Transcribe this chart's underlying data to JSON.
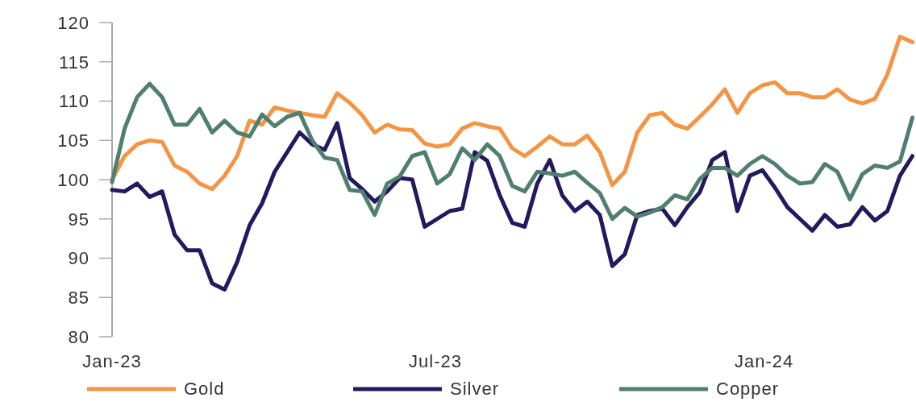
{
  "chart_data": {
    "type": "line",
    "xlim": [
      "2023-01-01",
      "2024-03-26"
    ],
    "xticks": [
      {
        "value": "2023-01-01",
        "label": "Jan-23"
      },
      {
        "value": "2023-07-01",
        "label": "Jul-23"
      },
      {
        "value": "2024-01-01",
        "label": "Jan-24"
      }
    ],
    "ylim": [
      80,
      120
    ],
    "yticks": [
      80,
      85,
      90,
      95,
      100,
      105,
      110,
      115,
      120
    ],
    "grid": false,
    "legend": "bottom",
    "marker": "none",
    "line_style": "solid",
    "x": [
      "2023-01-01",
      "2023-01-08",
      "2023-01-15",
      "2023-01-22",
      "2023-01-29",
      "2023-02-05",
      "2023-02-12",
      "2023-02-19",
      "2023-02-26",
      "2023-03-05",
      "2023-03-12",
      "2023-03-19",
      "2023-03-26",
      "2023-04-02",
      "2023-04-09",
      "2023-04-16",
      "2023-04-23",
      "2023-04-30",
      "2023-05-07",
      "2023-05-14",
      "2023-05-21",
      "2023-05-28",
      "2023-06-04",
      "2023-06-11",
      "2023-06-18",
      "2023-06-25",
      "2023-07-02",
      "2023-07-09",
      "2023-07-16",
      "2023-07-23",
      "2023-07-30",
      "2023-08-06",
      "2023-08-13",
      "2023-08-20",
      "2023-08-27",
      "2023-09-03",
      "2023-09-10",
      "2023-09-17",
      "2023-09-24",
      "2023-10-01",
      "2023-10-08",
      "2023-10-15",
      "2023-10-22",
      "2023-10-29",
      "2023-11-05",
      "2023-11-12",
      "2023-11-19",
      "2023-11-26",
      "2023-12-03",
      "2023-12-10",
      "2023-12-17",
      "2023-12-24",
      "2023-12-31",
      "2024-01-07",
      "2024-01-14",
      "2024-01-21",
      "2024-01-28",
      "2024-02-04",
      "2024-02-11",
      "2024-02-18",
      "2024-02-25",
      "2024-03-03",
      "2024-03-10",
      "2024-03-17",
      "2024-03-24"
    ],
    "series": [
      {
        "name": "Gold",
        "color": "#f39545",
        "values": [
          100,
          103,
          104.5,
          105,
          104.8,
          101.8,
          101,
          99.5,
          98.8,
          100.5,
          103,
          107.5,
          107,
          109.2,
          108.8,
          108.5,
          108.2,
          108,
          111,
          109.8,
          108.2,
          106,
          107,
          106.4,
          106.3,
          104.6,
          104.2,
          104.5,
          106.5,
          107.2,
          106.8,
          106.5,
          104,
          103,
          104.2,
          105.5,
          104.5,
          104.5,
          105.6,
          103.5,
          99.3,
          101,
          106,
          108.2,
          108.5,
          107,
          106.5,
          108,
          109.6,
          111.5,
          108.5,
          111,
          112,
          112.4,
          111,
          111,
          110.5,
          110.5,
          111.5,
          110.2,
          109.7,
          110.3,
          113.4,
          118.2,
          117.5
        ]
      },
      {
        "name": "Silver",
        "color": "#221a5e",
        "values": [
          98.7,
          98.5,
          99.5,
          97.8,
          98.5,
          93,
          91,
          91,
          86.8,
          86,
          89.5,
          94.2,
          97,
          101,
          103.5,
          106,
          104.5,
          103.8,
          107.2,
          100.2,
          98.8,
          97.2,
          98.5,
          100.2,
          100,
          94,
          95,
          96,
          96.3,
          103.5,
          102.4,
          98,
          94.5,
          94,
          99.5,
          102.5,
          98,
          96,
          97.2,
          95.5,
          89,
          90.5,
          95.5,
          96,
          96.3,
          94.2,
          96.5,
          98.4,
          102.5,
          103.5,
          96,
          100.5,
          101.2,
          99,
          96.5,
          95,
          93.5,
          95.5,
          94,
          94.3,
          96.5,
          94.8,
          96,
          100.5,
          103
        ]
      },
      {
        "name": "Copper",
        "color": "#4f7f6e",
        "values": [
          99.7,
          106.5,
          110.5,
          112.2,
          110.5,
          107,
          107,
          109,
          106,
          107.5,
          106,
          105.5,
          108.3,
          106.8,
          108,
          108.5,
          105,
          102.8,
          102.5,
          98.7,
          98.5,
          95.5,
          99.5,
          100.4,
          103,
          103.5,
          99.5,
          100.7,
          104,
          102.5,
          104.5,
          103,
          99.2,
          98.5,
          101,
          100.8,
          100.5,
          101,
          99.6,
          98.3,
          95,
          96.4,
          95.3,
          95.8,
          96.5,
          98,
          97.5,
          100.1,
          101.5,
          101.5,
          100.5,
          102,
          103,
          102,
          100.5,
          99.5,
          99.7,
          102,
          101,
          97.5,
          100.7,
          101.8,
          101.5,
          102.3,
          107.9
        ]
      }
    ]
  }
}
